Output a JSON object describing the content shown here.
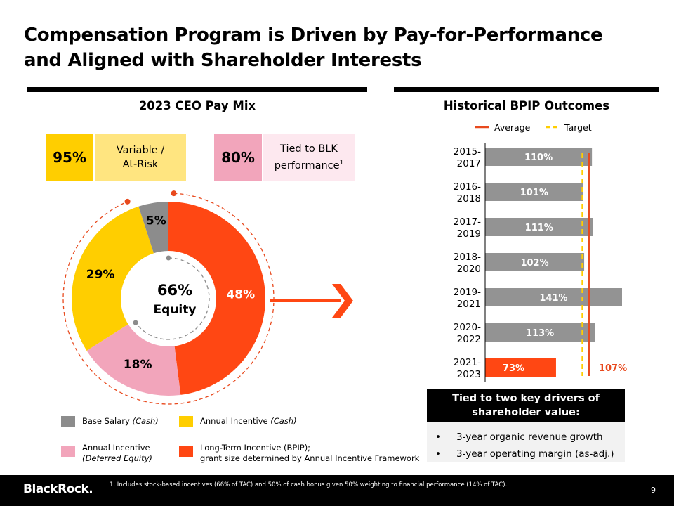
{
  "slide": {
    "title_line1": "Compensation Program is Driven by Pay-for-Performance",
    "title_line2": "and Aligned with Shareholder Interests"
  },
  "pay_mix": {
    "heading": "2023 CEO Pay Mix",
    "stat1": {
      "value": "95%",
      "label_line1": "Variable /",
      "label_line2": "At-Risk"
    },
    "stat2": {
      "value": "80%",
      "label_line1": "Tied to BLK",
      "label_line2": "performance",
      "footnote_mark": "1"
    }
  },
  "legend": {
    "base_salary": {
      "name": "Base Salary",
      "qualifier": "(Cash)"
    },
    "annual_incentive": {
      "name": "Annual Incentive",
      "qualifier": "(Cash)"
    },
    "annual_deferred": {
      "name": "Annual Incentive",
      "qualifier": "(Deferred Equity)"
    },
    "ltip": {
      "name": "Long-Term Incentive (BPIP);",
      "detail": "grant size determined by Annual Incentive Framework"
    }
  },
  "bpip": {
    "heading": "Historical BPIP Outcomes"
  },
  "callout": {
    "heading_line1": "Tied to two key drivers of",
    "heading_line2": "shareholder value:",
    "bullets": [
      "3-year organic revenue growth",
      "3-year operating margin (as-adj.)"
    ],
    "bullet_glyph": "•"
  },
  "footer": {
    "logo": "BlackRock.",
    "footnote": "1. Includes stock-based incentives (66% of TAC) and 50% of cash bonus given 50% weighting to financial performance (14% of TAC).",
    "page_number": "9"
  },
  "colors": {
    "base_salary": "#8c8c8c",
    "annual_cash": "#ffce00",
    "annual_cash_light": "#ffe580",
    "deferred_equity": "#f2a5bb",
    "deferred_equity_light": "#fde8ef",
    "ltip": "#ff4713",
    "bar_gray": "#939393",
    "average_line": "#e8491d",
    "target_line": "#ffce00"
  },
  "chart_data": [
    {
      "type": "pie",
      "center_label_value": "66%",
      "center_label_text": "Equity",
      "slices": [
        {
          "label": "48%",
          "value": 48,
          "key": "ltip"
        },
        {
          "label": "18%",
          "value": 18,
          "key": "deferred_equity"
        },
        {
          "label": "29%",
          "value": 29,
          "key": "annual_cash"
        },
        {
          "label": "5%",
          "value": 5,
          "key": "base_salary"
        }
      ]
    },
    {
      "type": "bar",
      "orientation": "horizontal",
      "legend_average": "Average",
      "legend_target": "Target",
      "categories": [
        [
          "2015-",
          "2017"
        ],
        [
          "2016-",
          "2018"
        ],
        [
          "2017-",
          "2019"
        ],
        [
          "2018-",
          "2020"
        ],
        [
          "2019-",
          "2021"
        ],
        [
          "2020-",
          "2022"
        ],
        [
          "2021-",
          "2023"
        ]
      ],
      "values": [
        110,
        101,
        111,
        102,
        141,
        113,
        73
      ],
      "value_labels": [
        "110%",
        "101%",
        "111%",
        "102%",
        "141%",
        "113%",
        "73%"
      ],
      "average": 107,
      "average_label": "107%",
      "target": 100,
      "xlim": [
        0,
        141
      ]
    }
  ]
}
